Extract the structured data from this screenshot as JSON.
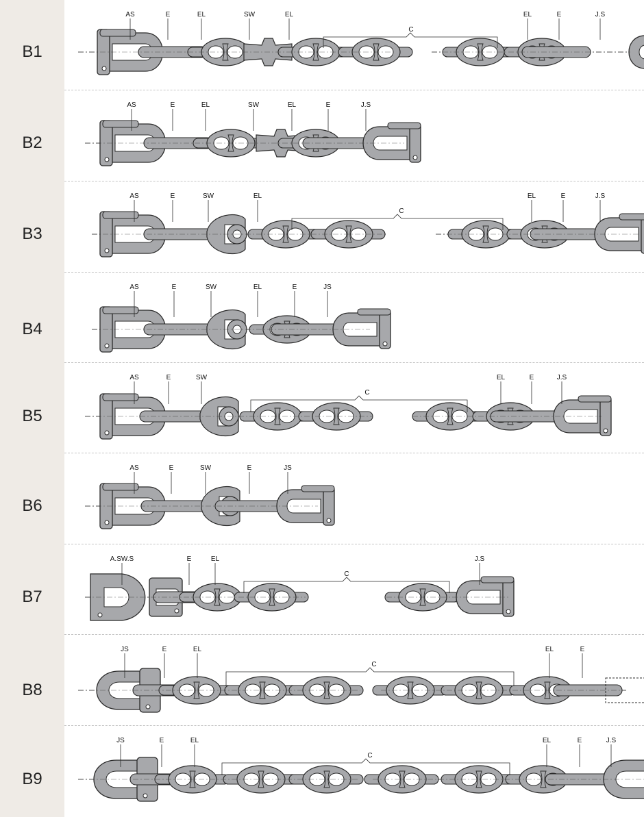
{
  "rows": [
    {
      "code": "B1",
      "labels": [
        "AS",
        "E",
        "EL",
        "SW",
        "EL",
        "C",
        "EL",
        "E",
        "J.S"
      ]
    },
    {
      "code": "B2",
      "labels": [
        "AS",
        "E",
        "EL",
        "SW",
        "EL",
        "E",
        "J.S"
      ]
    },
    {
      "code": "B3",
      "labels": [
        "AS",
        "E",
        "SW",
        "EL",
        "C",
        "EL",
        "E",
        "J.S"
      ]
    },
    {
      "code": "B4",
      "labels": [
        "AS",
        "E",
        "SW",
        "EL",
        "E",
        "JS"
      ]
    },
    {
      "code": "B5",
      "labels": [
        "AS",
        "E",
        "SW",
        "C",
        "EL",
        "E",
        "J.S"
      ]
    },
    {
      "code": "B6",
      "labels": [
        "AS",
        "E",
        "SW",
        "E",
        "JS"
      ]
    },
    {
      "code": "B7",
      "labels": [
        "A.SW.S",
        "E",
        "EL",
        "C",
        "J.S"
      ]
    },
    {
      "code": "B8",
      "labels": [
        "JS",
        "E",
        "EL",
        "C",
        "EL",
        "E"
      ]
    },
    {
      "code": "B9",
      "labels": [
        "JS",
        "E",
        "EL",
        "C",
        "EL",
        "E",
        "J.S"
      ]
    }
  ],
  "colors": {
    "metal": "#a7a8ab",
    "outline": "#2a2a2a",
    "label_bg": "#efebe6",
    "separator": "#c4c4c4"
  }
}
